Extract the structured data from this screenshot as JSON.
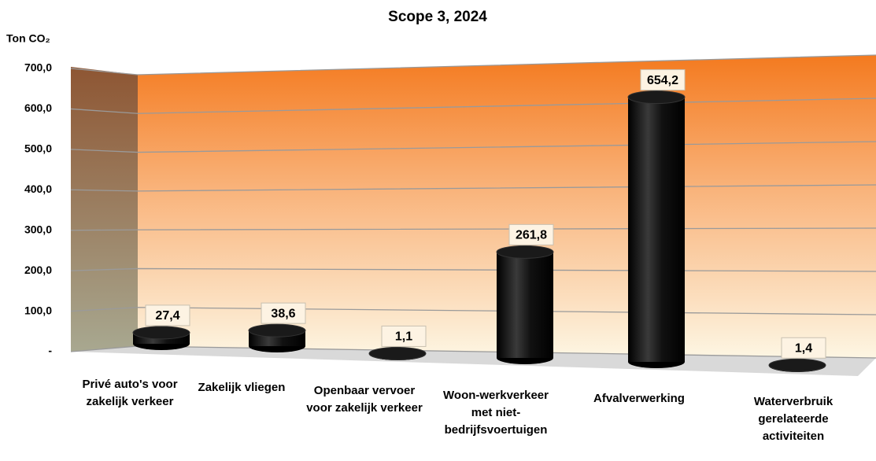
{
  "chart_data": {
    "type": "bar",
    "title": "Scope 3, 2024",
    "y_axis_label": "Ton CO₂",
    "categories": [
      "Privé auto's voor zakelijk verkeer",
      "Zakelijk vliegen",
      "Openbaar vervoer voor zakelijk verkeer",
      "Woon-werkverkeer met niet-bedrijfsvoertuigen",
      "Afvalverwerking",
      "Waterverbruik gerelateerde activiteiten"
    ],
    "values": [
      27.4,
      38.6,
      1.1,
      261.8,
      654.2,
      1.4
    ],
    "value_labels": [
      "27,4",
      "38,6",
      "1,1",
      "261,8",
      "654,2",
      "1,4"
    ],
    "color": "#000000",
    "ylim": [
      0,
      700
    ],
    "yticks": [
      {
        "value": 0,
        "label": "-"
      },
      {
        "value": 100,
        "label": "100,0"
      },
      {
        "value": 200,
        "label": "200,0"
      },
      {
        "value": 300,
        "label": "300,0"
      },
      {
        "value": 400,
        "label": "400,0"
      },
      {
        "value": 500,
        "label": "500,0"
      },
      {
        "value": 600,
        "label": "600,0"
      },
      {
        "value": 700,
        "label": "700,0"
      }
    ],
    "grid": true
  }
}
